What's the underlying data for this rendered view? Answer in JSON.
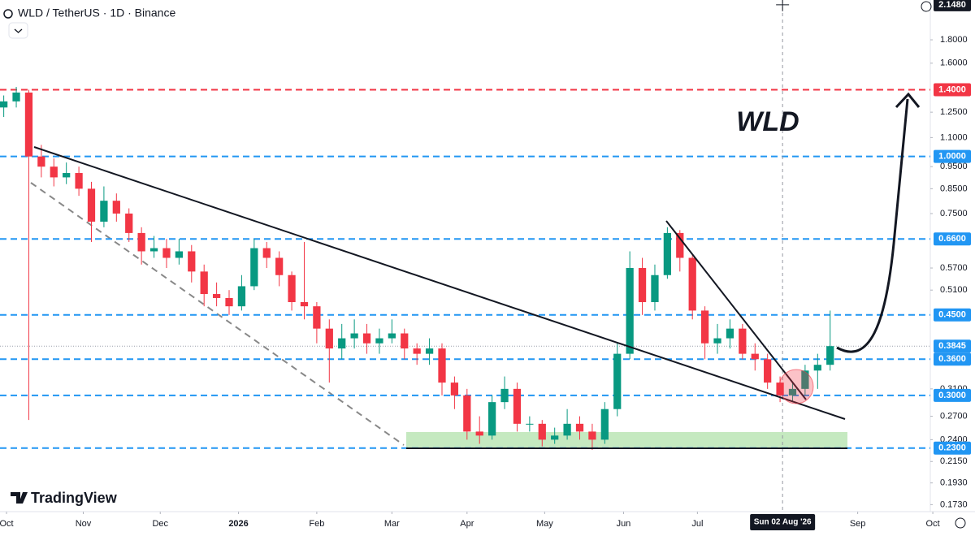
{
  "chart_data": {
    "type": "candlestick",
    "title": "WLD / TetherUS · 1D · Binance",
    "annotation": "WLD",
    "brand": "TradingView",
    "log_scale": true,
    "up_color": "#089981",
    "down_color": "#f23645",
    "candles": {
      "open": [
        1.28,
        1.32,
        1.38,
        1.0,
        0.95,
        0.9,
        0.92,
        0.85,
        0.72,
        0.8,
        0.75,
        0.68,
        0.62,
        0.63,
        0.6,
        0.62,
        0.56,
        0.5,
        0.49,
        0.47,
        0.52,
        0.63,
        0.6,
        0.55,
        0.48,
        0.47,
        0.42,
        0.38,
        0.4,
        0.41,
        0.39,
        0.4,
        0.41,
        0.38,
        0.37,
        0.38,
        0.32,
        0.3,
        0.25,
        0.245,
        0.29,
        0.31,
        0.26,
        0.26,
        0.24,
        0.245,
        0.26,
        0.25,
        0.24,
        0.28,
        0.37,
        0.57,
        0.48,
        0.55,
        0.68,
        0.6,
        0.46,
        0.39,
        0.4,
        0.42,
        0.37,
        0.36,
        0.32,
        0.3,
        0.31,
        0.34,
        0.35
      ],
      "high": [
        1.36,
        1.42,
        1.4,
        1.06,
        0.99,
        0.97,
        0.95,
        0.88,
        0.86,
        0.83,
        0.77,
        0.7,
        0.67,
        0.66,
        0.66,
        0.64,
        0.58,
        0.53,
        0.51,
        0.55,
        0.66,
        0.65,
        0.62,
        0.56,
        0.65,
        0.48,
        0.44,
        0.43,
        0.44,
        0.43,
        0.42,
        0.44,
        0.42,
        0.39,
        0.4,
        0.39,
        0.33,
        0.31,
        0.27,
        0.3,
        0.33,
        0.32,
        0.27,
        0.265,
        0.255,
        0.28,
        0.27,
        0.26,
        0.29,
        0.39,
        0.62,
        0.6,
        0.58,
        0.7,
        0.69,
        0.61,
        0.47,
        0.43,
        0.44,
        0.43,
        0.39,
        0.37,
        0.33,
        0.32,
        0.35,
        0.37,
        0.46
      ],
      "low": [
        1.22,
        1.28,
        0.265,
        0.9,
        0.86,
        0.87,
        0.82,
        0.65,
        0.7,
        0.72,
        0.65,
        0.58,
        0.6,
        0.57,
        0.58,
        0.53,
        0.47,
        0.47,
        0.45,
        0.46,
        0.51,
        0.57,
        0.52,
        0.46,
        0.44,
        0.39,
        0.32,
        0.36,
        0.38,
        0.37,
        0.37,
        0.39,
        0.36,
        0.35,
        0.35,
        0.3,
        0.28,
        0.24,
        0.235,
        0.24,
        0.28,
        0.25,
        0.25,
        0.232,
        0.235,
        0.24,
        0.24,
        0.228,
        0.235,
        0.27,
        0.36,
        0.45,
        0.46,
        0.54,
        0.56,
        0.44,
        0.36,
        0.37,
        0.38,
        0.36,
        0.34,
        0.31,
        0.29,
        0.29,
        0.3,
        0.31,
        0.34
      ],
      "close": [
        1.32,
        1.38,
        1.0,
        0.95,
        0.9,
        0.92,
        0.85,
        0.72,
        0.8,
        0.75,
        0.68,
        0.62,
        0.63,
        0.6,
        0.62,
        0.56,
        0.5,
        0.49,
        0.47,
        0.52,
        0.63,
        0.6,
        0.55,
        0.48,
        0.47,
        0.42,
        0.38,
        0.4,
        0.41,
        0.39,
        0.4,
        0.41,
        0.38,
        0.37,
        0.38,
        0.32,
        0.3,
        0.25,
        0.245,
        0.29,
        0.31,
        0.26,
        0.26,
        0.24,
        0.245,
        0.26,
        0.25,
        0.24,
        0.28,
        0.37,
        0.57,
        0.48,
        0.55,
        0.68,
        0.6,
        0.46,
        0.39,
        0.4,
        0.42,
        0.37,
        0.36,
        0.32,
        0.3,
        0.31,
        0.34,
        0.35,
        0.3845
      ]
    },
    "xlim": [
      -0.3,
      74
    ],
    "xticks": [
      {
        "value": 0.22,
        "label": "Oct"
      },
      {
        "value": 6.35,
        "label": "Nov"
      },
      {
        "value": 12.5,
        "label": "Dec"
      },
      {
        "value": 18.75,
        "label": "2026"
      },
      {
        "value": 25.0,
        "label": "Feb"
      },
      {
        "value": 31.0,
        "label": "Mar"
      },
      {
        "value": 37.0,
        "label": "Apr"
      },
      {
        "value": 43.2,
        "label": "May"
      },
      {
        "value": 49.5,
        "label": "Jun"
      },
      {
        "value": 55.4,
        "label": "Jul"
      },
      {
        "value": 68.2,
        "label": "Sep"
      },
      {
        "value": 74.2,
        "label": "Oct"
      }
    ],
    "ylim": [
      0.167,
      2.2
    ],
    "yticks": [
      {
        "value": 1.8,
        "label": "1.8000"
      },
      {
        "value": 1.6,
        "label": "1.6000"
      },
      {
        "value": 1.25,
        "label": "1.2500"
      },
      {
        "value": 1.1,
        "label": "1.1000"
      },
      {
        "value": 0.95,
        "label": "0.9500"
      },
      {
        "value": 0.85,
        "label": "0.8500"
      },
      {
        "value": 0.75,
        "label": "0.7500"
      },
      {
        "value": 0.57,
        "label": "0.5700"
      },
      {
        "value": 0.51,
        "label": "0.5100"
      },
      {
        "value": 0.31,
        "label": "0.3100"
      },
      {
        "value": 0.27,
        "label": "0.2700"
      },
      {
        "value": 0.24,
        "label": "0.2400"
      },
      {
        "value": 0.215,
        "label": "0.2150"
      },
      {
        "value": 0.193,
        "label": "0.1930"
      },
      {
        "value": 0.173,
        "label": "0.1730"
      }
    ],
    "levels": [
      {
        "value": 1.4,
        "label": "1.4000",
        "color": "#f23645"
      },
      {
        "value": 1.0,
        "label": "1.0000",
        "color": "#2196f3"
      },
      {
        "value": 0.66,
        "label": "0.6600",
        "color": "#2196f3"
      },
      {
        "value": 0.45,
        "label": "0.4500",
        "color": "#2196f3"
      },
      {
        "value": 0.36,
        "label": "0.3600",
        "color": "#2196f3"
      },
      {
        "value": 0.3,
        "label": "0.3000",
        "color": "#2196f3"
      },
      {
        "value": 0.23,
        "label": "0.2300",
        "color": "#2196f3"
      }
    ],
    "last_price": {
      "value": 0.3845,
      "label": "0.3845"
    },
    "crosshair_price": {
      "value": 2.148,
      "label": "2.1480"
    },
    "crosshair_date": {
      "value": 62.2,
      "label": "Sun 02 Aug '26"
    }
  }
}
